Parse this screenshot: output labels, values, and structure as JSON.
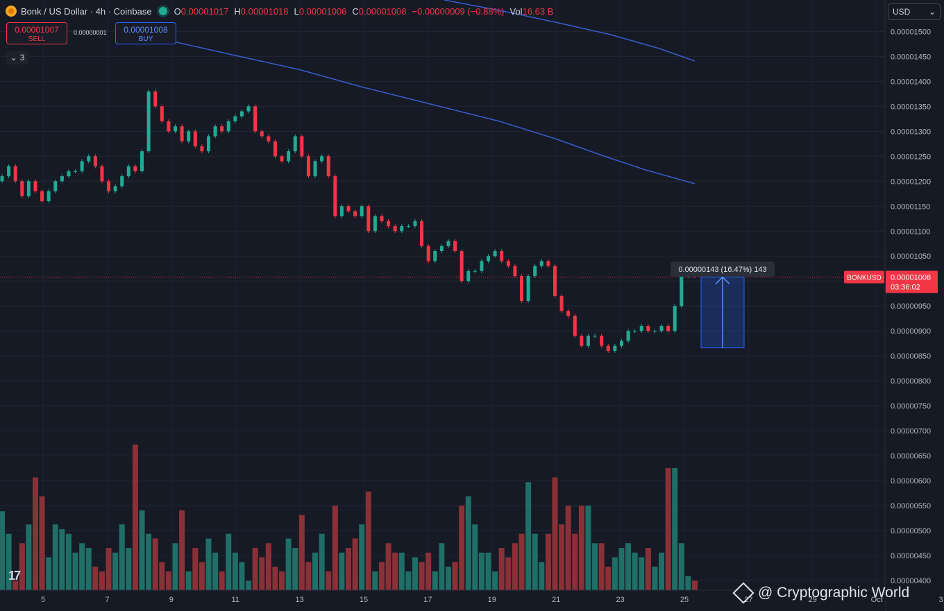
{
  "header": {
    "symbol_title": "Bonk / US Dollar · 4h · Coinbase",
    "open_label": "O",
    "open": "0.00001017",
    "high_label": "H",
    "high": "0.00001018",
    "low_label": "L",
    "low": "0.00001006",
    "close_label": "C",
    "close": "0.00001008",
    "change": "−0.00000009 (−0.88%)",
    "volume_label": "Vol",
    "volume": "16.63 B"
  },
  "trade": {
    "sell_price": "0.00001007",
    "sell_label": "SELL",
    "spread": "0.00000001",
    "buy_price": "0.00001008",
    "buy_label": "BUY"
  },
  "indicators_count": "3",
  "currency": "USD",
  "price_tag": {
    "symbol": "BONKUSD",
    "price": "0.00001008",
    "countdown": "03:36:02"
  },
  "measure_label": "0.00000143 (16.47%) 143",
  "watermark": "@ Cryptographic World",
  "colors": {
    "up": "#22ab94",
    "down": "#f23645",
    "ma": "#3a5ccc",
    "volume_up": "#1f6f67",
    "volume_down": "#8a3137"
  },
  "chart_data": {
    "type": "candlestick",
    "ylim": [
      4e-06,
      1.52e-05
    ],
    "y_ticks": [
      "0.00000400",
      "0.00000450",
      "0.00000500",
      "0.00000550",
      "0.00000600",
      "0.00000650",
      "0.00000700",
      "0.00000750",
      "0.00000800",
      "0.00000850",
      "0.00000900",
      "0.00000950",
      "0.00001000",
      "0.00001050",
      "0.00001100",
      "0.00001150",
      "0.00001200",
      "0.00001250",
      "0.00001300",
      "0.00001350",
      "0.00001400",
      "0.00001450",
      "0.00001500"
    ],
    "x_ticks": [
      "5",
      "7",
      "9",
      "11",
      "13",
      "15",
      "17",
      "19",
      "21",
      "23",
      "25",
      "27",
      "29",
      "Oct",
      "3"
    ],
    "current_price": 1.008e-05,
    "candles_close": [
      1.21e-05,
      1.23e-05,
      1.2e-05,
      1.17e-05,
      1.2e-05,
      1.18e-05,
      1.16e-05,
      1.18e-05,
      1.2e-05,
      1.21e-05,
      1.22e-05,
      1.22e-05,
      1.24e-05,
      1.25e-05,
      1.23e-05,
      1.2e-05,
      1.18e-05,
      1.19e-05,
      1.21e-05,
      1.23e-05,
      1.22e-05,
      1.26e-05,
      1.38e-05,
      1.35e-05,
      1.32e-05,
      1.3e-05,
      1.31e-05,
      1.28e-05,
      1.3e-05,
      1.27e-05,
      1.26e-05,
      1.29e-05,
      1.31e-05,
      1.3e-05,
      1.32e-05,
      1.33e-05,
      1.34e-05,
      1.35e-05,
      1.3e-05,
      1.29e-05,
      1.28e-05,
      1.25e-05,
      1.24e-05,
      1.26e-05,
      1.29e-05,
      1.25e-05,
      1.21e-05,
      1.24e-05,
      1.25e-05,
      1.21e-05,
      1.13e-05,
      1.15e-05,
      1.14e-05,
      1.13e-05,
      1.15e-05,
      1.1e-05,
      1.13e-05,
      1.12e-05,
      1.11e-05,
      1.1e-05,
      1.11e-05,
      1.11e-05,
      1.12e-05,
      1.07e-05,
      1.04e-05,
      1.06e-05,
      1.07e-05,
      1.08e-05,
      1.06e-05,
      1e-05,
      1.02e-05,
      1.02e-05,
      1.04e-05,
      1.05e-05,
      1.06e-05,
      1.04e-05,
      1.03e-05,
      1.01e-05,
      9.6e-06,
      1.01e-05,
      1.03e-05,
      1.04e-05,
      1.03e-05,
      9.7e-06,
      9.4e-06,
      9.3e-06,
      8.9e-06,
      8.7e-06,
      8.9e-06,
      8.9e-06,
      8.7e-06,
      8.6e-06,
      8.7e-06,
      8.8e-06,
      9e-06,
      9e-06,
      9.1e-06,
      9e-06,
      9e-06,
      9.1e-06,
      9e-06,
      9.5e-06,
      1.01e-05,
      1.02e-05,
      1.01e-05
    ],
    "volume": [
      548,
      500,
      400,
      480,
      520,
      620,
      580,
      450,
      520,
      510,
      500,
      460,
      480,
      470,
      430,
      420,
      470,
      460,
      520,
      470,
      690,
      550,
      500,
      490,
      440,
      420,
      480,
      550,
      420,
      470,
      440,
      490,
      460,
      420,
      500,
      460,
      440,
      400,
      470,
      450,
      480,
      430,
      420,
      490,
      470,
      540,
      440,
      460,
      500,
      420,
      560,
      460,
      470,
      490,
      520,
      590,
      420,
      440,
      480,
      460,
      460,
      420,
      450,
      440,
      460,
      420,
      480,
      430,
      440,
      560,
      580,
      520,
      460,
      460,
      420,
      470,
      450,
      480,
      500,
      610,
      500,
      440,
      500,
      620,
      520,
      560,
      500,
      560,
      560,
      480,
      480,
      430,
      450,
      470,
      480,
      460,
      450,
      470,
      430,
      460,
      640,
      640,
      480,
      410,
      400
    ]
  }
}
